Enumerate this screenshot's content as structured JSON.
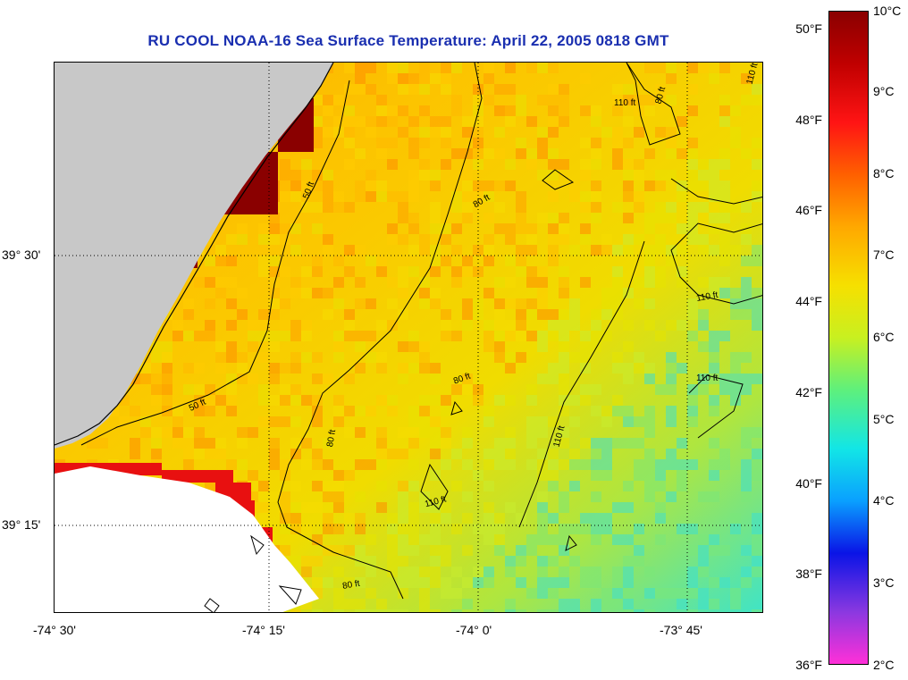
{
  "title": "RU COOL  NOAA-16  Sea Surface Temperature:  April 22, 2005 0818 GMT",
  "x_axis_labels": [
    "-74° 30'",
    "-74° 15'",
    "-74° 0'",
    "-73° 45'"
  ],
  "y_axis_labels": [
    "39° 30'",
    "39° 15'"
  ],
  "contour_labels": [
    "110 ft",
    "80 ft",
    "110 ft",
    "50 ft",
    "80 ft",
    "110 ft",
    "110 ft",
    "80 ft",
    "110 ft",
    "50 ft",
    "80 ft",
    "110 ft",
    "80 ft"
  ],
  "colorbar": {
    "fahrenheit_labels": [
      "50°F",
      "48°F",
      "46°F",
      "44°F",
      "42°F",
      "40°F",
      "38°F",
      "36°F"
    ],
    "celsius_labels": [
      "10°C",
      "9°C",
      "8°C",
      "7°C",
      "6°C",
      "5°C",
      "4°C",
      "3°C",
      "2°C"
    ],
    "colors": [
      "#ff30d8",
      "#8a38e0",
      "#0a14e6",
      "#0aa0ff",
      "#12e6e6",
      "#5ef07c",
      "#c8f020",
      "#f6e000",
      "#ffa800",
      "#ff6000",
      "#ff1414",
      "#c00000",
      "#8a0000"
    ]
  },
  "colors": {
    "land": "#c8c8c8",
    "no_data": "#ffffff",
    "title": "#1a2fb0",
    "warm": "#8a0000"
  }
}
